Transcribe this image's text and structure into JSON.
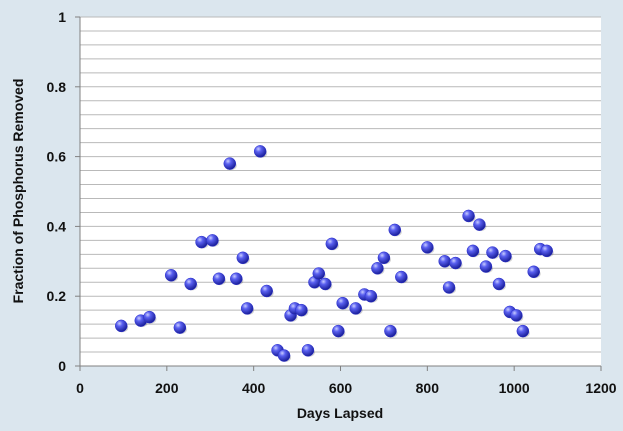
{
  "chart_data": {
    "type": "scatter",
    "title": "",
    "xlabel": "Days Lapsed",
    "ylabel": "Fraction of Phosphorus Removed",
    "xlim": [
      0,
      1200
    ],
    "ylim": [
      0,
      1
    ],
    "x_ticks": [
      "0",
      "200",
      "400",
      "600",
      "800",
      "1000",
      "1200"
    ],
    "y_ticks": [
      "0",
      "0.2",
      "0.4",
      "0.6",
      "0.8",
      "1"
    ],
    "grid": "horizontal minor gridlines every 0.04",
    "legend": "none",
    "marker_color": "#2a2fd0",
    "series": [
      {
        "points": [
          [
            95,
            0.115
          ],
          [
            140,
            0.13
          ],
          [
            160,
            0.14
          ],
          [
            210,
            0.26
          ],
          [
            230,
            0.11
          ],
          [
            255,
            0.235
          ],
          [
            280,
            0.355
          ],
          [
            305,
            0.36
          ],
          [
            320,
            0.25
          ],
          [
            345,
            0.58
          ],
          [
            360,
            0.25
          ],
          [
            375,
            0.31
          ],
          [
            385,
            0.165
          ],
          [
            415,
            0.615
          ],
          [
            430,
            0.215
          ],
          [
            455,
            0.045
          ],
          [
            470,
            0.03
          ],
          [
            485,
            0.145
          ],
          [
            495,
            0.165
          ],
          [
            510,
            0.16
          ],
          [
            525,
            0.045
          ],
          [
            540,
            0.24
          ],
          [
            550,
            0.265
          ],
          [
            565,
            0.235
          ],
          [
            580,
            0.35
          ],
          [
            595,
            0.1
          ],
          [
            605,
            0.18
          ],
          [
            635,
            0.165
          ],
          [
            655,
            0.205
          ],
          [
            670,
            0.2
          ],
          [
            685,
            0.28
          ],
          [
            700,
            0.31
          ],
          [
            715,
            0.1
          ],
          [
            725,
            0.39
          ],
          [
            740,
            0.255
          ],
          [
            800,
            0.34
          ],
          [
            840,
            0.3
          ],
          [
            850,
            0.225
          ],
          [
            865,
            0.295
          ],
          [
            895,
            0.43
          ],
          [
            905,
            0.33
          ],
          [
            920,
            0.405
          ],
          [
            935,
            0.285
          ],
          [
            950,
            0.325
          ],
          [
            965,
            0.235
          ],
          [
            980,
            0.315
          ],
          [
            990,
            0.155
          ],
          [
            1005,
            0.145
          ],
          [
            1020,
            0.1
          ],
          [
            1045,
            0.27
          ],
          [
            1060,
            0.335
          ],
          [
            1075,
            0.33
          ]
        ]
      }
    ]
  }
}
